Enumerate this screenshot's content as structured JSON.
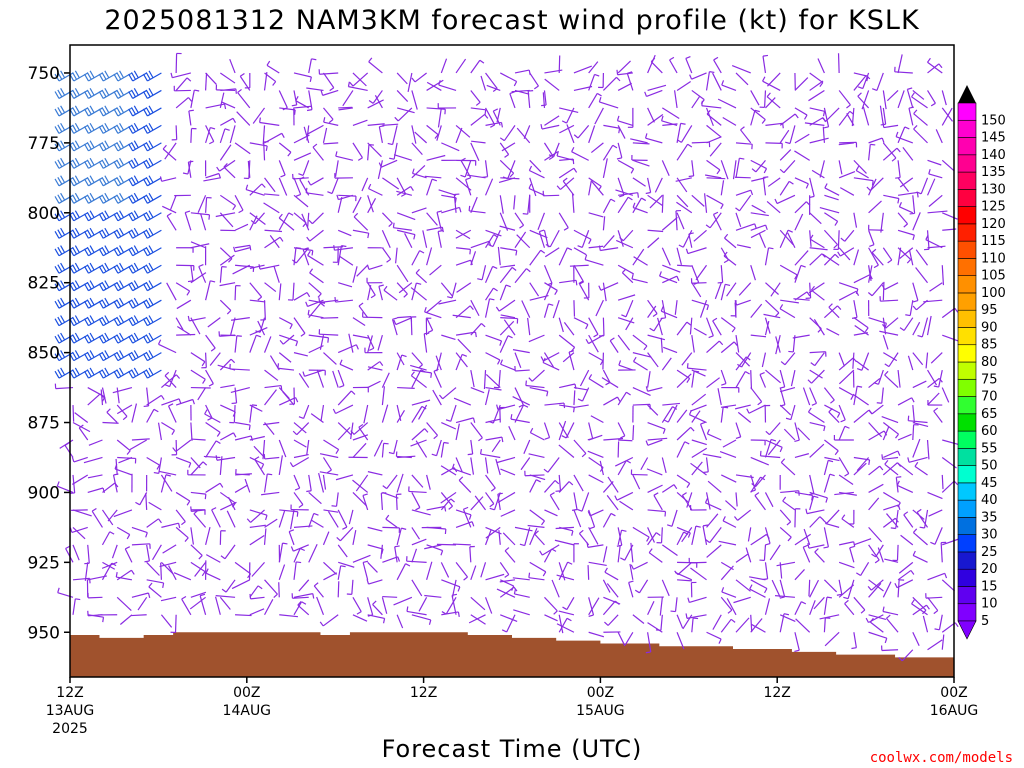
{
  "chart_data": {
    "type": "wind_profile",
    "title": "2025081312 NAM3KM forecast wind profile (kt) for KSLK",
    "xlabel": "Forecast Time (UTC)",
    "ylabel": "",
    "y_ticks": [
      "750",
      "775",
      "800",
      "825",
      "850",
      "875",
      "900",
      "925",
      "950"
    ],
    "y_tick_values": [
      750,
      775,
      800,
      825,
      850,
      875,
      900,
      925,
      950
    ],
    "ylim": [
      740,
      966
    ],
    "y_axis_inverted": true,
    "x_ticks": [
      {
        "line1": "12Z",
        "line2": "13AUG",
        "line3": "2025",
        "hour": 0
      },
      {
        "line1": "00Z",
        "line2": "14AUG",
        "line3": "",
        "hour": 12
      },
      {
        "line1": "12Z",
        "line2": "",
        "line3": "",
        "hour": 24
      },
      {
        "line1": "00Z",
        "line2": "15AUG",
        "line3": "",
        "hour": 36
      },
      {
        "line1": "12Z",
        "line2": "",
        "line3": "",
        "hour": 48
      },
      {
        "line1": "00Z",
        "line2": "16AUG",
        "line3": "",
        "hour": 60
      }
    ],
    "xlim_hours": [
      0,
      60
    ],
    "colorbar_levels": [
      "5",
      "10",
      "15",
      "20",
      "25",
      "30",
      "35",
      "40",
      "45",
      "50",
      "55",
      "60",
      "65",
      "70",
      "75",
      "80",
      "85",
      "90",
      "95",
      "100",
      "105",
      "110",
      "115",
      "120",
      "125",
      "130",
      "135",
      "140",
      "145",
      "150"
    ],
    "colorbar_colors": [
      "#8000ff",
      "#6000f0",
      "#3000e0",
      "#1818d0",
      "#0040ff",
      "#0070e0",
      "#00a0ff",
      "#00c8ff",
      "#00ffd0",
      "#00e0a0",
      "#00ff60",
      "#00e000",
      "#30ff30",
      "#80ff00",
      "#c0ff00",
      "#ffff00",
      "#ffe000",
      "#ffc000",
      "#ffa000",
      "#ff9000",
      "#ff7000",
      "#ff5000",
      "#ff2000",
      "#ff0000",
      "#ff0040",
      "#ff0060",
      "#ff0090",
      "#ff00b0",
      "#ff00d0",
      "#ff00ff"
    ],
    "barb_field": {
      "hour_step": 1,
      "pressure_step_mb": 12.5,
      "description": "Early hours (13 Aug 12Z-18Z) at 750-850 mb show blue (25-30 kt) westerly barbs; later hours are purple (5-10 kt) light and variable winds.",
      "strong_color": "#1a4fe0",
      "light_color": "#8a2be2"
    },
    "terrain": {
      "color": "#a0522d",
      "surface_pressure_mb": [
        951,
        951,
        952,
        952,
        952,
        951,
        951,
        950,
        950,
        950,
        950,
        950,
        950,
        950,
        950,
        950,
        950,
        951,
        951,
        950,
        950,
        950,
        950,
        950,
        950,
        950,
        950,
        951,
        951,
        951,
        952,
        952,
        952,
        953,
        953,
        953,
        954,
        954,
        954,
        954,
        955,
        955,
        955,
        955,
        955,
        956,
        956,
        956,
        956,
        957,
        957,
        957,
        958,
        958,
        958,
        958,
        959,
        959,
        959,
        959,
        959
      ]
    }
  },
  "credit": "coolwx.com/models"
}
